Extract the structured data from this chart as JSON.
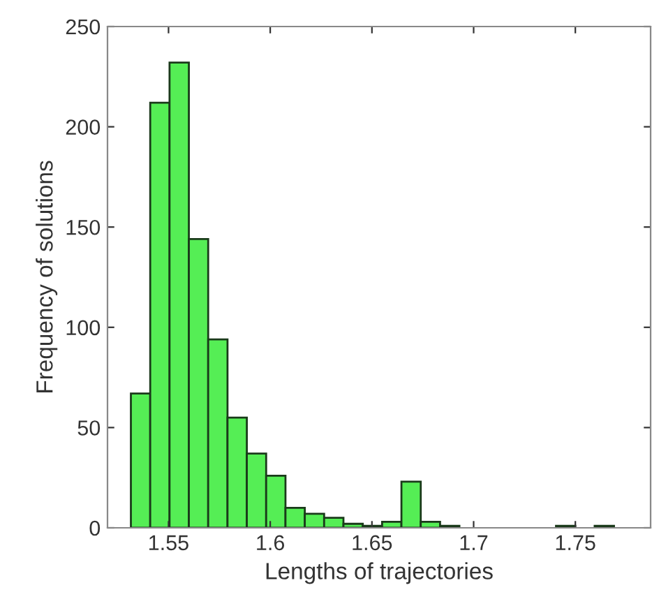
{
  "chart_data": {
    "type": "histogram",
    "xlabel": "Lengths of trajectories",
    "ylabel": "Frequency of solutions",
    "bins": [
      1.5315,
      1.541,
      1.5505,
      1.56,
      1.5695,
      1.579,
      1.5885,
      1.598,
      1.6075,
      1.617,
      1.6265,
      1.636,
      1.6455,
      1.655,
      1.6645,
      1.674,
      1.6835,
      1.693,
      1.7025,
      1.712,
      1.7215,
      1.731,
      1.7405,
      1.75,
      1.7595,
      1.769
    ],
    "values": [
      67,
      212,
      232,
      144,
      94,
      55,
      37,
      26,
      10,
      7,
      5,
      2,
      1,
      3,
      23,
      3,
      1,
      0,
      0,
      0,
      0,
      0,
      1,
      0,
      1
    ],
    "color": "#55ee55",
    "xlim": [
      1.52,
      1.787
    ],
    "xticks": [
      {
        "value": 1.55,
        "label": "1.55"
      },
      {
        "value": 1.6,
        "label": "1.6"
      },
      {
        "value": 1.65,
        "label": "1.65"
      },
      {
        "value": 1.7,
        "label": "1.7"
      },
      {
        "value": 1.75,
        "label": "1.75"
      }
    ],
    "ylim": [
      0,
      250
    ],
    "yticks": [
      0,
      50,
      100,
      150,
      200,
      250
    ],
    "grid": false
  }
}
